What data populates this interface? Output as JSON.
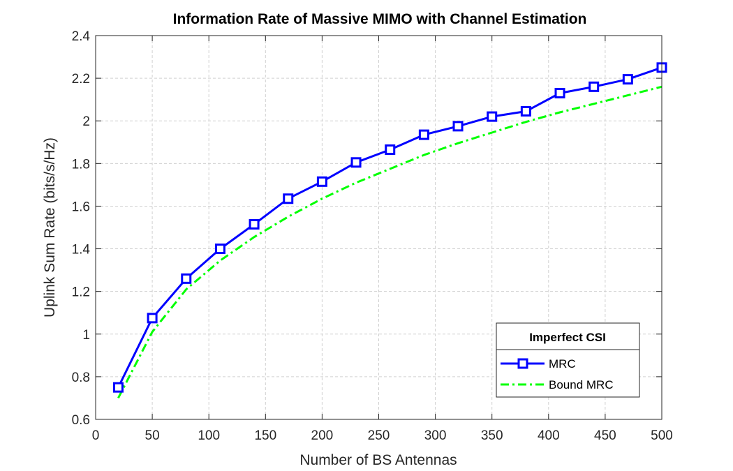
{
  "chart_data": {
    "type": "line",
    "title": "Information Rate of Massive MIMO with Channel Estimation",
    "xlabel": "Number of BS Antennas",
    "ylabel": "Uplink Sum Rate (bits/s/Hz)",
    "xlim": [
      0,
      500
    ],
    "ylim": [
      0.6,
      2.4
    ],
    "xticks": [
      0,
      50,
      100,
      150,
      200,
      250,
      300,
      350,
      400,
      450,
      500
    ],
    "yticks": [
      0.6,
      0.8,
      1,
      1.2,
      1.4,
      1.6,
      1.8,
      2,
      2.2,
      2.4
    ],
    "grid": true,
    "legend": {
      "title": "Imperfect CSI",
      "placement": "bottom-right"
    },
    "series": [
      {
        "name": "MRC",
        "color": "#0000ff",
        "style": "solid",
        "marker": "square",
        "x": [
          20,
          50,
          80,
          110,
          140,
          170,
          200,
          230,
          260,
          290,
          320,
          350,
          380,
          410,
          440,
          470,
          500
        ],
        "y": [
          0.75,
          1.075,
          1.26,
          1.4,
          1.515,
          1.635,
          1.715,
          1.805,
          1.865,
          1.935,
          1.975,
          2.02,
          2.045,
          2.13,
          2.16,
          2.195,
          2.25
        ]
      },
      {
        "name": "Bound MRC",
        "color": "#00ff00",
        "style": "dashdot",
        "marker": "none",
        "x": [
          20,
          50,
          80,
          110,
          140,
          170,
          200,
          230,
          260,
          290,
          320,
          350,
          380,
          410,
          440,
          470,
          500
        ],
        "y": [
          0.7,
          1.01,
          1.21,
          1.345,
          1.455,
          1.55,
          1.635,
          1.71,
          1.775,
          1.84,
          1.895,
          1.945,
          1.995,
          2.04,
          2.08,
          2.12,
          2.16
        ]
      }
    ]
  }
}
